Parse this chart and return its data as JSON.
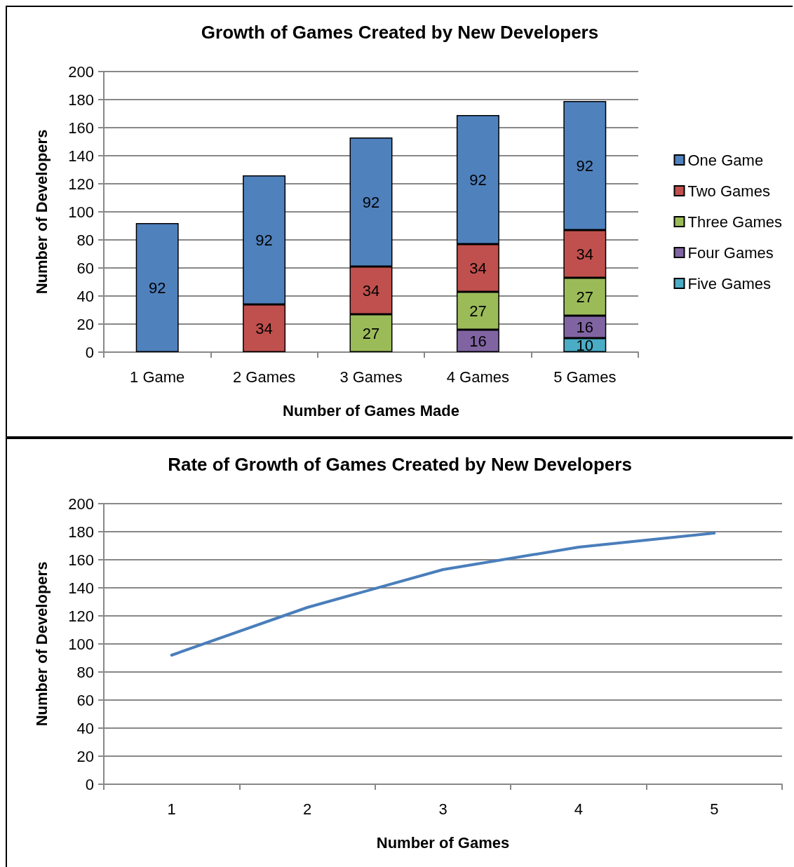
{
  "chart_data": [
    {
      "type": "bar",
      "title": "Growth of Games Created by New Developers",
      "xlabel": "Number of Games Made",
      "ylabel": "Number of Developers",
      "categories": [
        "1 Game",
        "2 Games",
        "3 Games",
        "4 Games",
        "5 Games"
      ],
      "stacked": true,
      "data_labels": true,
      "grid": "y",
      "legend": "right",
      "ylim": [
        0,
        200
      ],
      "yticks": [
        0,
        20,
        40,
        60,
        80,
        100,
        120,
        140,
        160,
        180,
        200
      ],
      "series": [
        {
          "name": "Five Games",
          "color": "#4bacc6",
          "values": [
            null,
            null,
            null,
            null,
            10
          ]
        },
        {
          "name": "Four Games",
          "color": "#8064a2",
          "values": [
            null,
            null,
            null,
            16,
            16
          ]
        },
        {
          "name": "Three Games",
          "color": "#9bbb59",
          "values": [
            null,
            null,
            27,
            27,
            27
          ]
        },
        {
          "name": "Two Games",
          "color": "#c0504d",
          "values": [
            null,
            34,
            34,
            34,
            34
          ]
        },
        {
          "name": "One Game",
          "color": "#4f81bd",
          "values": [
            92,
            92,
            92,
            92,
            92
          ]
        }
      ]
    },
    {
      "type": "line",
      "title": "Rate of Growth of Games Created by New Developers",
      "xlabel": "Number of Games",
      "ylabel": "Number of Developers",
      "categories": [
        "1",
        "2",
        "3",
        "4",
        "5"
      ],
      "grid": "y",
      "marker": "none",
      "line_style": "solid",
      "ylim": [
        0,
        200
      ],
      "yticks": [
        0,
        20,
        40,
        60,
        80,
        100,
        120,
        140,
        160,
        180,
        200
      ],
      "series": [
        {
          "color": "#4a7ebb",
          "values": [
            92,
            126,
            153,
            169,
            179
          ]
        }
      ]
    }
  ]
}
